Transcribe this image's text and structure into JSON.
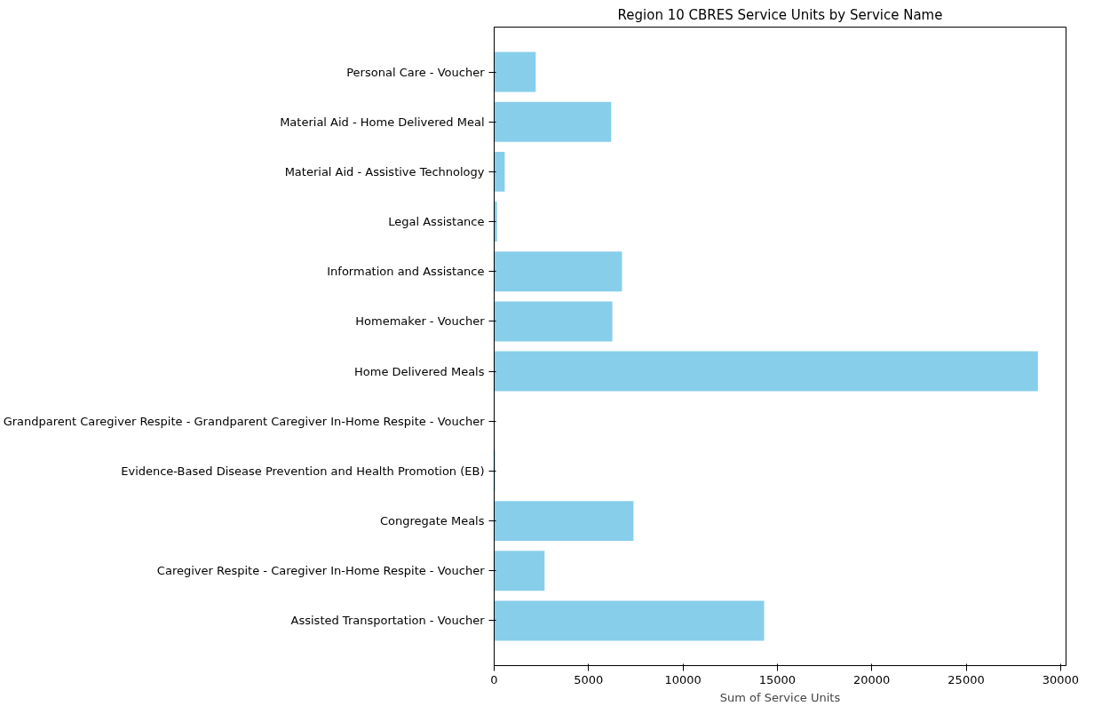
{
  "chart_data": {
    "type": "bar",
    "orientation": "horizontal",
    "title": "Region 10 CBRES Service Units by Service Name",
    "xlabel": "Sum of Service Units",
    "categories": [
      "Personal Care - Voucher",
      "Material Aid - Home Delivered Meal",
      "Material Aid - Assistive Technology",
      "Legal Assistance",
      "Information and Assistance",
      "Homemaker - Voucher",
      "Home Delivered Meals",
      "Grandparent Caregiver Respite - Grandparent Caregiver In-Home Respite - Voucher",
      "Evidence-Based Disease Prevention and Health Promotion (EB)",
      "Congregate Meals",
      "Caregiver Respite - Caregiver In-Home Respite - Voucher",
      "Assisted Transportation - Voucher"
    ],
    "values": [
      2200,
      6200,
      560,
      150,
      6770,
      6260,
      28800,
      0,
      50,
      7380,
      2670,
      14300
    ],
    "color": "#87ceeb",
    "xlim": [
      0,
      30290
    ],
    "xticks": [
      0,
      5000,
      10000,
      15000,
      20000,
      25000,
      30000
    ],
    "grid": false
  }
}
